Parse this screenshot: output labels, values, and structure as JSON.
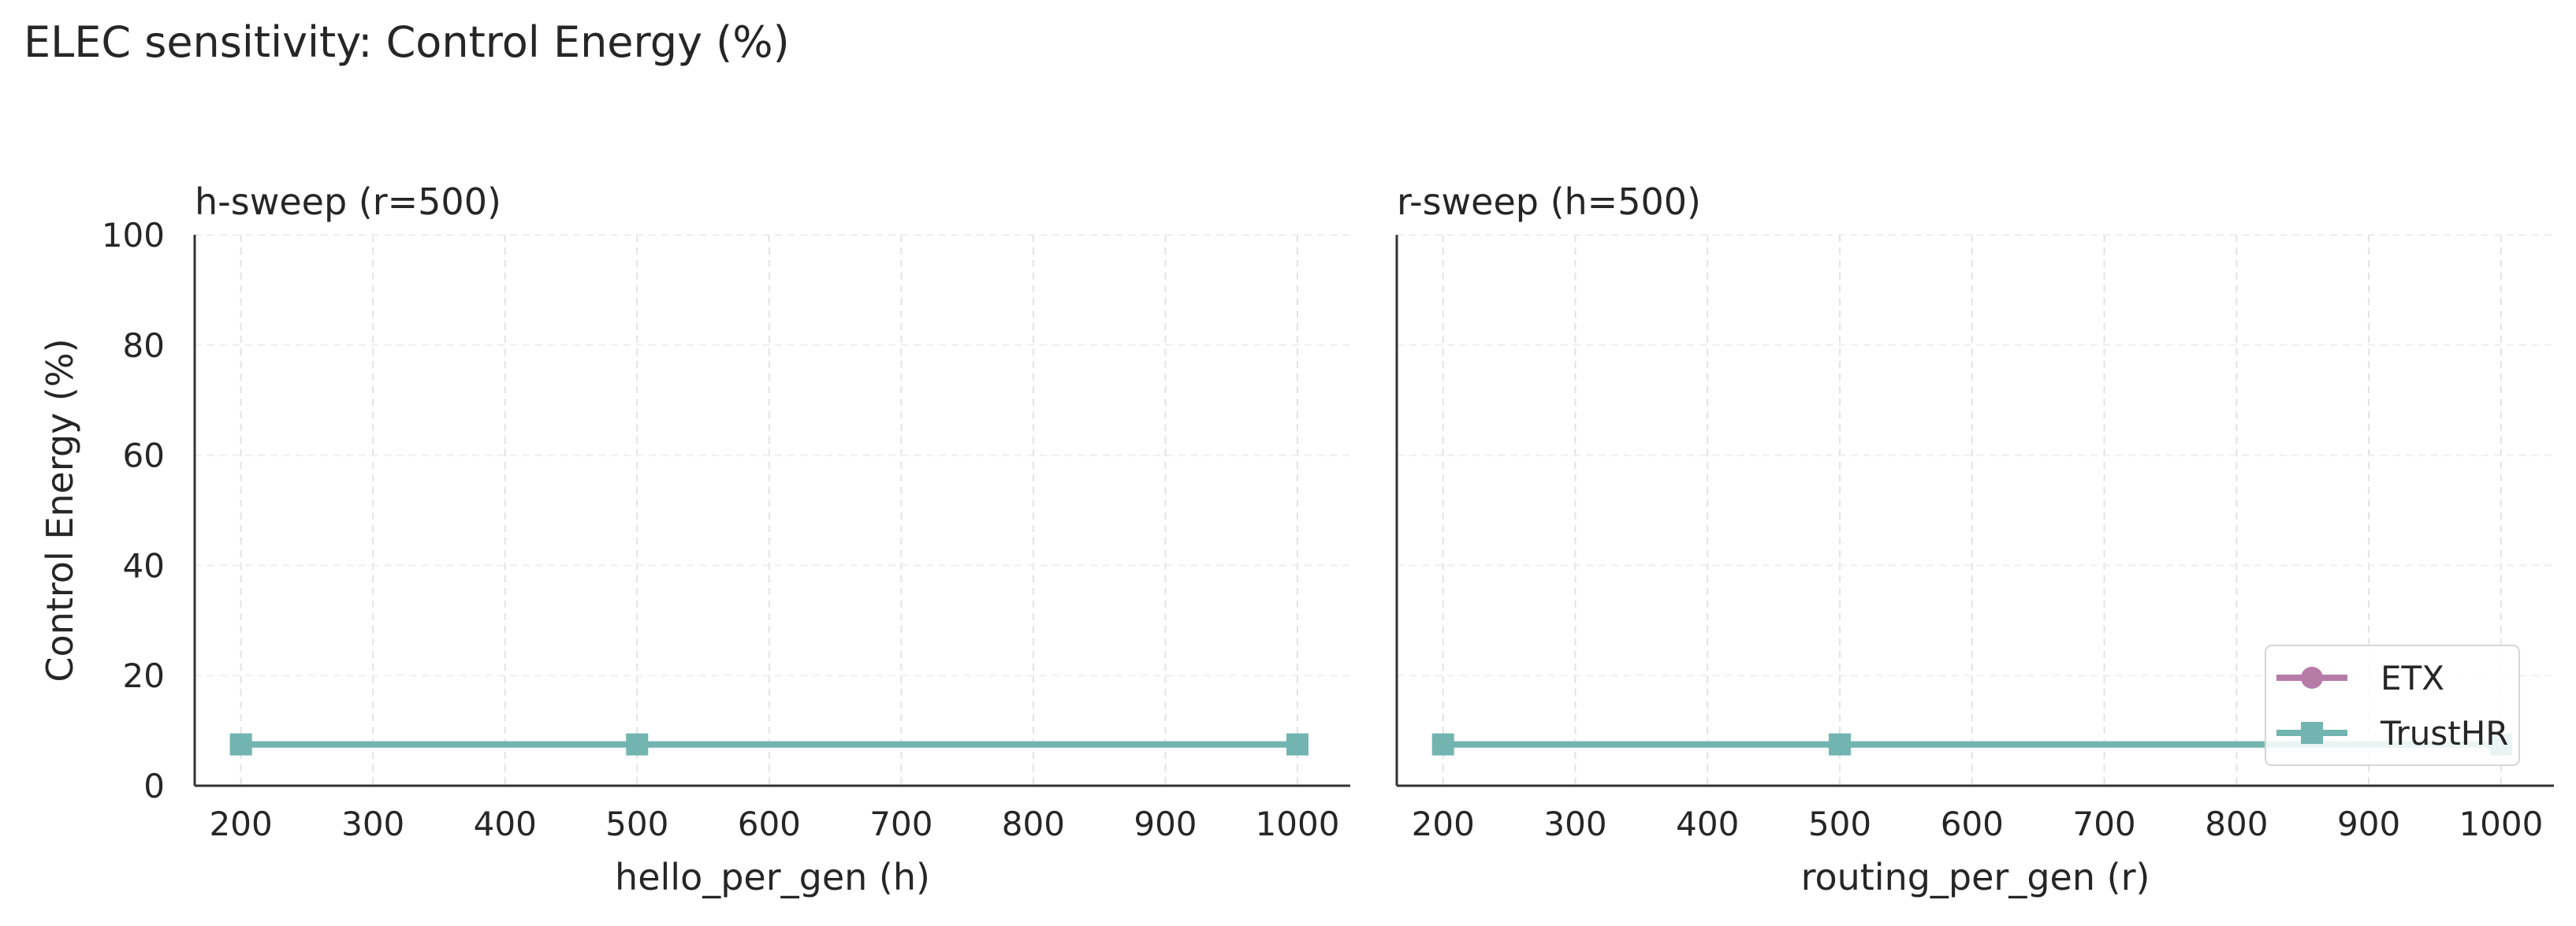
{
  "figure": {
    "title": "ELEC sensitivity: Control Energy (%)"
  },
  "colors": {
    "ETX": "#b77ba8",
    "TrustHR": "#72b5b0"
  },
  "chart_data": [
    {
      "type": "line",
      "title": "h-sweep (r=500)",
      "xlabel": "hello_per_gen (h)",
      "ylabel": "Control Energy (%)",
      "xlim": [
        165,
        1040
      ],
      "ylim": [
        0,
        100
      ],
      "xticks": [
        200,
        300,
        400,
        500,
        600,
        700,
        800,
        900,
        1000
      ],
      "yticks": [
        0,
        20,
        40,
        60,
        80,
        100
      ],
      "grid": true,
      "series": [
        {
          "name": "ETX",
          "marker": "circle",
          "x": [
            200,
            500,
            1000
          ],
          "y": [
            7.5,
            7.5,
            7.5
          ]
        },
        {
          "name": "TrustHR",
          "marker": "square",
          "x": [
            200,
            500,
            1000
          ],
          "y": [
            7.5,
            7.5,
            7.5
          ]
        }
      ]
    },
    {
      "type": "line",
      "title": "r-sweep (h=500)",
      "xlabel": "routing_per_gen (r)",
      "ylabel": "",
      "xlim": [
        165,
        1040
      ],
      "ylim": [
        0,
        100
      ],
      "xticks": [
        200,
        300,
        400,
        500,
        600,
        700,
        800,
        900,
        1000
      ],
      "yticks": [
        0,
        20,
        40,
        60,
        80,
        100
      ],
      "grid": true,
      "legend": "lower-right",
      "series": [
        {
          "name": "ETX",
          "marker": "circle",
          "x": [
            200,
            500,
            1000
          ],
          "y": [
            7.5,
            7.5,
            7.5
          ]
        },
        {
          "name": "TrustHR",
          "marker": "square",
          "x": [
            200,
            500,
            1000
          ],
          "y": [
            7.5,
            7.5,
            7.5
          ]
        }
      ]
    }
  ]
}
